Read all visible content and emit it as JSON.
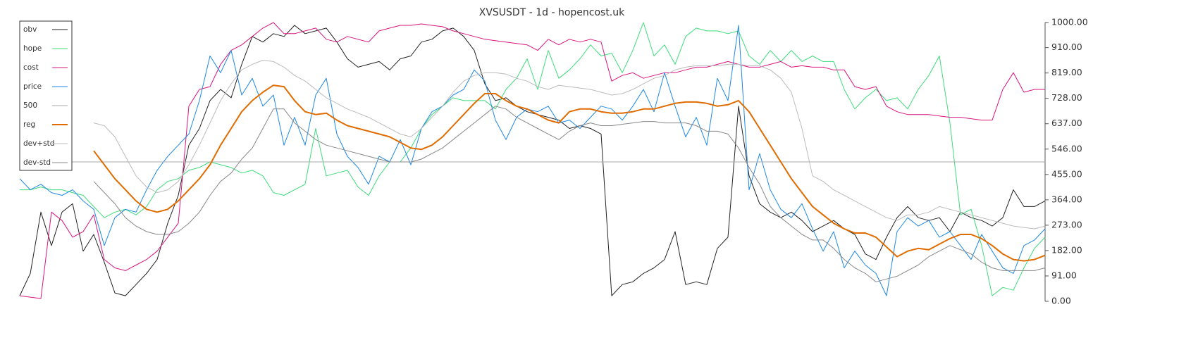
{
  "chart_data": {
    "type": "line",
    "title": "XVSUSDT - 1d - hopencost.uk",
    "ylim": [
      0,
      1000
    ],
    "yticks": [
      {
        "value": 0,
        "label": "0.00"
      },
      {
        "value": 91,
        "label": "91.00"
      },
      {
        "value": 182,
        "label": "182.00"
      },
      {
        "value": 273,
        "label": "273.00"
      },
      {
        "value": 364,
        "label": "364.00"
      },
      {
        "value": 455,
        "label": "455.00"
      },
      {
        "value": 546,
        "label": "546.00"
      },
      {
        "value": 637,
        "label": "637.00"
      },
      {
        "value": 728,
        "label": "728.00"
      },
      {
        "value": 819,
        "label": "819.00"
      },
      {
        "value": 910,
        "label": "910.00"
      },
      {
        "value": 1000,
        "label": "1000.00"
      }
    ],
    "legend": "upper left",
    "series": [
      {
        "name": "obv",
        "color": "#222222",
        "width": 1,
        "values": [
          20,
          100,
          320,
          200,
          320,
          350,
          180,
          240,
          140,
          30,
          20,
          60,
          100,
          150,
          280,
          380,
          560,
          620,
          720,
          760,
          730,
          850,
          950,
          930,
          960,
          950,
          990,
          960,
          970,
          980,
          930,
          870,
          840,
          850,
          860,
          830,
          870,
          880,
          930,
          940,
          970,
          980,
          950,
          900,
          780,
          720,
          730,
          700,
          680,
          670,
          660,
          650,
          620,
          630,
          620,
          600,
          20,
          60,
          70,
          100,
          120,
          150,
          250,
          60,
          70,
          60,
          190,
          230,
          700,
          450,
          350,
          320,
          300,
          320,
          290,
          250,
          270,
          290,
          260,
          240,
          170,
          150,
          230,
          300,
          340,
          300,
          290,
          300,
          250,
          320,
          300,
          290,
          270,
          300,
          400,
          340,
          340,
          360
        ]
      },
      {
        "name": "hope",
        "color": "#3ddc7a",
        "width": 1,
        "values": [
          400,
          400,
          410,
          400,
          400,
          390,
          380,
          340,
          300,
          320,
          330,
          310,
          340,
          400,
          430,
          440,
          470,
          480,
          500,
          490,
          480,
          460,
          470,
          450,
          390,
          380,
          400,
          420,
          620,
          450,
          460,
          470,
          410,
          380,
          450,
          500,
          500,
          550,
          620,
          670,
          700,
          730,
          720,
          720,
          720,
          690,
          760,
          800,
          870,
          760,
          900,
          800,
          830,
          870,
          920,
          880,
          890,
          820,
          900,
          1000,
          880,
          920,
          850,
          950,
          980,
          970,
          970,
          960,
          970,
          880,
          850,
          900,
          860,
          900,
          860,
          880,
          860,
          860,
          760,
          690,
          730,
          760,
          720,
          730,
          690,
          760,
          810,
          880,
          640,
          310,
          330,
          200,
          20,
          50,
          40,
          120,
          190,
          230
        ]
      },
      {
        "name": "cost",
        "color": "#d8157f",
        "width": 1,
        "values": [
          20,
          15,
          10,
          320,
          290,
          230,
          250,
          310,
          150,
          120,
          110,
          130,
          150,
          180,
          230,
          280,
          700,
          760,
          770,
          850,
          900,
          920,
          950,
          980,
          1000,
          960,
          960,
          970,
          980,
          940,
          930,
          950,
          940,
          930,
          970,
          980,
          990,
          990,
          995,
          990,
          985,
          970,
          960,
          950,
          940,
          935,
          930,
          925,
          920,
          900,
          940,
          920,
          940,
          930,
          940,
          930,
          790,
          810,
          820,
          800,
          810,
          820,
          820,
          830,
          840,
          840,
          850,
          860,
          850,
          840,
          840,
          850,
          860,
          840,
          845,
          840,
          840,
          830,
          830,
          770,
          760,
          770,
          700,
          680,
          670,
          670,
          670,
          665,
          660,
          660,
          655,
          650,
          650,
          760,
          820,
          750,
          760,
          760
        ]
      },
      {
        "name": "price",
        "color": "#1e88e5",
        "width": 1,
        "values": [
          440,
          400,
          420,
          390,
          380,
          400,
          360,
          330,
          200,
          300,
          330,
          320,
          400,
          470,
          520,
          560,
          600,
          720,
          880,
          820,
          900,
          740,
          800,
          700,
          740,
          560,
          660,
          560,
          740,
          800,
          600,
          520,
          480,
          420,
          520,
          500,
          580,
          490,
          620,
          680,
          700,
          740,
          760,
          830,
          790,
          650,
          580,
          660,
          690,
          680,
          700,
          640,
          650,
          620,
          660,
          700,
          690,
          650,
          700,
          760,
          680,
          820,
          700,
          590,
          660,
          560,
          800,
          720,
          990,
          400,
          530,
          400,
          330,
          300,
          350,
          260,
          180,
          250,
          120,
          180,
          130,
          100,
          20,
          250,
          300,
          270,
          290,
          230,
          250,
          200,
          150,
          240,
          180,
          120,
          100,
          200,
          220,
          260
        ]
      },
      {
        "name": "500",
        "color": "#aaaaaa",
        "width": 1,
        "values": [
          500,
          500,
          500,
          500,
          500,
          500,
          500,
          500,
          500,
          500,
          500,
          500,
          500,
          500,
          500,
          500,
          500,
          500,
          500,
          500,
          500,
          500,
          500,
          500,
          500,
          500,
          500,
          500,
          500,
          500,
          500,
          500,
          500,
          500,
          500,
          500,
          500,
          500,
          500,
          500,
          500,
          500,
          500,
          500,
          500,
          500,
          500,
          500,
          500,
          500,
          500,
          500,
          500,
          500,
          500,
          500,
          500,
          500,
          500,
          500,
          500,
          500,
          500,
          500,
          500,
          500,
          500,
          500,
          500,
          500,
          500,
          500,
          500,
          500,
          500,
          500,
          500,
          500,
          500,
          500,
          500,
          500,
          500,
          500,
          500,
          500,
          500,
          500,
          500,
          500,
          500,
          500,
          500,
          500,
          500,
          500,
          500,
          500
        ]
      },
      {
        "name": "reg",
        "color": "#e06c00",
        "width": 2,
        "values": [
          null,
          null,
          null,
          null,
          null,
          null,
          null,
          540,
          490,
          440,
          400,
          360,
          330,
          320,
          330,
          360,
          400,
          440,
          490,
          560,
          620,
          680,
          720,
          750,
          775,
          770,
          720,
          680,
          670,
          675,
          650,
          630,
          620,
          610,
          600,
          590,
          570,
          550,
          545,
          560,
          590,
          630,
          670,
          710,
          745,
          745,
          720,
          700,
          690,
          670,
          650,
          640,
          680,
          690,
          690,
          680,
          675,
          675,
          680,
          690,
          690,
          700,
          710,
          715,
          715,
          710,
          700,
          705,
          720,
          680,
          620,
          560,
          500,
          440,
          390,
          340,
          310,
          280,
          260,
          245,
          245,
          230,
          195,
          160,
          180,
          190,
          185,
          205,
          225,
          240,
          240,
          225,
          200,
          170,
          150,
          145,
          150,
          165
        ]
      },
      {
        "name": "dev+std",
        "color": "#bbbbbb",
        "width": 1,
        "values": [
          null,
          null,
          null,
          null,
          null,
          null,
          null,
          640,
          630,
          590,
          520,
          450,
          410,
          390,
          400,
          430,
          490,
          560,
          640,
          720,
          780,
          830,
          850,
          865,
          860,
          840,
          810,
          790,
          760,
          730,
          710,
          690,
          675,
          660,
          640,
          620,
          600,
          590,
          620,
          660,
          700,
          750,
          790,
          810,
          820,
          820,
          815,
          800,
          790,
          770,
          760,
          775,
          770,
          765,
          760,
          750,
          740,
          745,
          760,
          780,
          800,
          810,
          830,
          840,
          845,
          845,
          845,
          850,
          850,
          845,
          845,
          830,
          800,
          750,
          620,
          450,
          430,
          400,
          380,
          360,
          340,
          320,
          300,
          290,
          310,
          310,
          320,
          340,
          330,
          320,
          310,
          300,
          290,
          280,
          270,
          265,
          260,
          270
        ]
      },
      {
        "name": "dev-std",
        "color": "#888888",
        "width": 1,
        "values": [
          null,
          null,
          null,
          null,
          null,
          null,
          null,
          430,
          390,
          350,
          300,
          270,
          250,
          240,
          240,
          250,
          280,
          320,
          380,
          430,
          460,
          510,
          550,
          620,
          690,
          690,
          640,
          610,
          580,
          560,
          550,
          540,
          530,
          520,
          510,
          500,
          500,
          500,
          510,
          530,
          550,
          580,
          610,
          640,
          670,
          700,
          690,
          660,
          640,
          620,
          600,
          580,
          610,
          630,
          640,
          630,
          630,
          635,
          640,
          645,
          645,
          640,
          640,
          640,
          630,
          610,
          610,
          600,
          550,
          480,
          420,
          340,
          300,
          270,
          240,
          220,
          220,
          190,
          150,
          120,
          100,
          70,
          80,
          90,
          110,
          130,
          160,
          180,
          200,
          185,
          170,
          140,
          120,
          110,
          110,
          110,
          110,
          120
        ]
      }
    ]
  }
}
